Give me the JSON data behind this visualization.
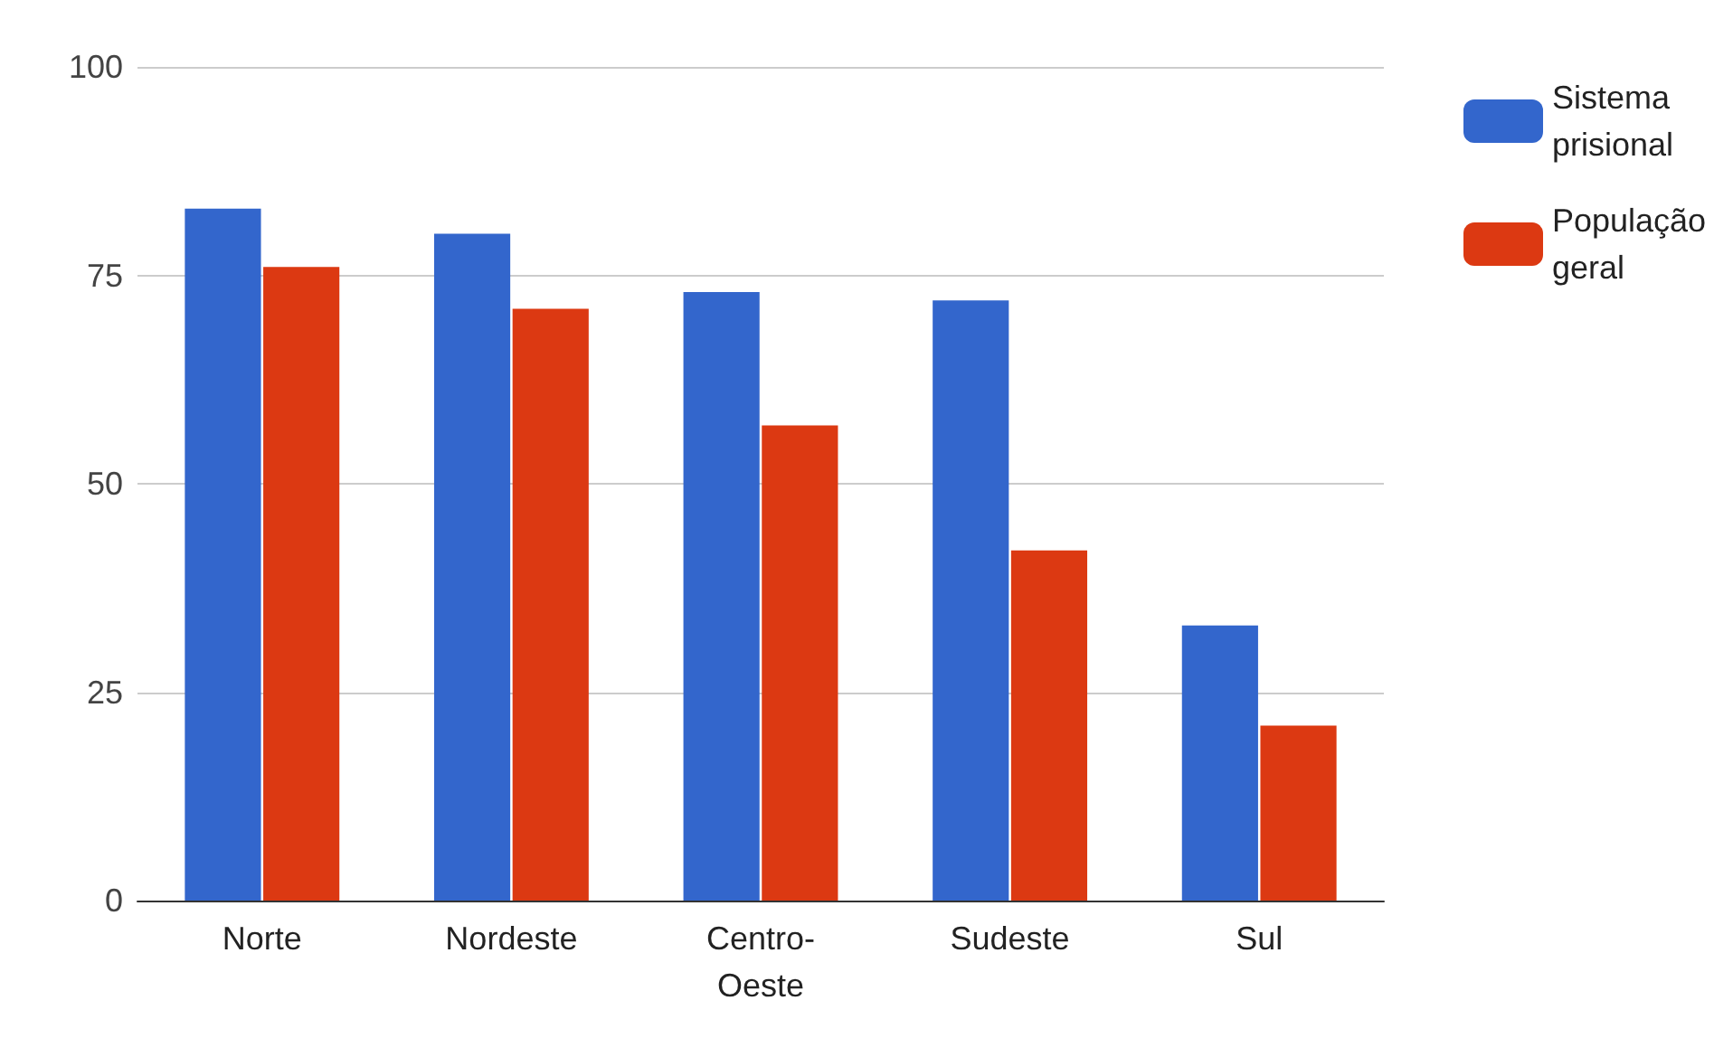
{
  "chart_data": {
    "type": "bar",
    "categories": [
      "Norte",
      "Nordeste",
      "Centro-Oeste",
      "Sudeste",
      "Sul"
    ],
    "series": [
      {
        "name": "Sistema prisional",
        "color": "#3366cc",
        "values": [
          83,
          80,
          73,
          72,
          33
        ]
      },
      {
        "name": "População geral",
        "color": "#dc3912",
        "values": [
          76,
          71,
          57,
          42,
          21
        ]
      }
    ],
    "ylim": [
      0,
      100
    ],
    "yticks": [
      0,
      25,
      50,
      75,
      100
    ],
    "grid": "y",
    "legend": "top right"
  }
}
